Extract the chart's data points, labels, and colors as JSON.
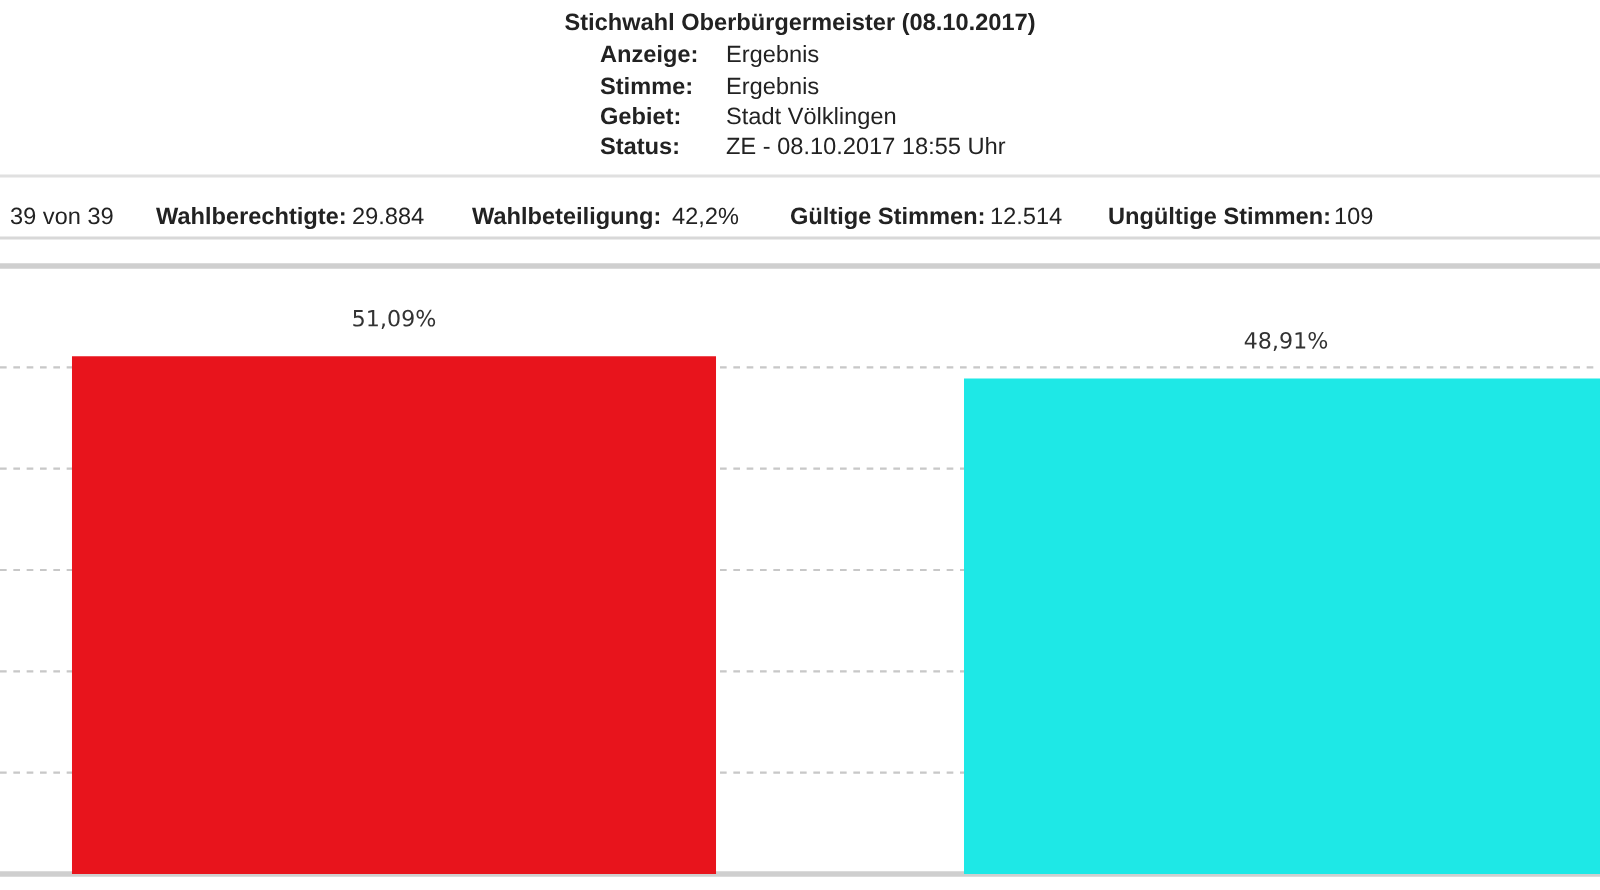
{
  "chart_data": {
    "type": "bar",
    "title": "Stichwahl Oberbürgermeister (08.10.2017)",
    "annotations": [
      "Anzeige:",
      "Ergebnis",
      "Stimme:",
      "Ergebnis",
      "Gebiet:",
      "Stadt Völklingen",
      "Status:",
      "ZE - 08.10.2017 18:55 Uhr",
      "39 von 39",
      "Wahlberechtigte:",
      "29.884",
      "Wahlbeteiligung:",
      "42,2%",
      "Gültige Stimmen:",
      "12.514",
      "Ungültige Stimmen:",
      "109"
    ],
    "categories": [
      null,
      null
    ],
    "values": [
      51.09,
      48.91
    ],
    "colors": [
      "#e8141c",
      "#1ee8e6"
    ],
    "value_labels": [
      "51,09%",
      "48,91%"
    ],
    "ylim": [
      0,
      60
    ],
    "yticks": [
      {
        "value": 0,
        "label": null
      },
      {
        "value": 10,
        "label": null
      },
      {
        "value": 20,
        "label": null
      },
      {
        "value": 30,
        "label": null
      },
      {
        "value": 40,
        "label": null
      },
      {
        "value": 50,
        "label": null
      },
      {
        "value": 60,
        "label": null
      }
    ],
    "grid": "y"
  }
}
